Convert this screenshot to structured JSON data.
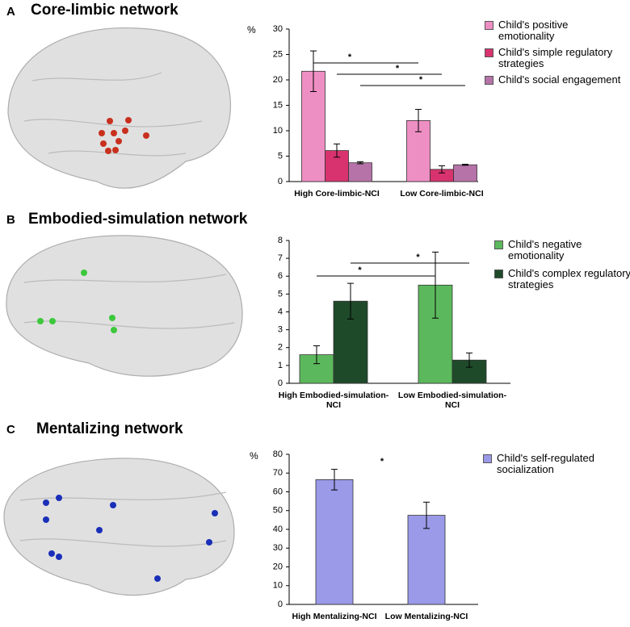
{
  "chart_data": [
    {
      "type": "bar",
      "panel": "A",
      "title": "Core-limbic network",
      "y_label": "%",
      "categories": [
        "High Core-limbic-NCI",
        "Low Core-limbic-NCI"
      ],
      "series": [
        {
          "name": "Child's positive emotionality",
          "color": "#ee8fc4",
          "values": [
            21.7,
            12
          ],
          "errors": [
            4,
            2.2
          ]
        },
        {
          "name": "Child's simple regulatory strategies",
          "color": "#d8336e",
          "values": [
            6.1,
            2.4
          ],
          "errors": [
            1.3,
            0.7
          ]
        },
        {
          "name": "Child's social engagement",
          "color": "#b673a8",
          "values": [
            3.7,
            3.3
          ],
          "errors": [
            0.2,
            0.1
          ]
        }
      ],
      "ylim": [
        0,
        30
      ],
      "yticks": [
        0,
        5,
        10,
        15,
        20,
        25,
        30
      ],
      "annotations": [
        "*",
        "*",
        "*"
      ]
    },
    {
      "type": "bar",
      "panel": "B",
      "title": "Embodied-simulation network",
      "categories": [
        "High Embodied-simulation-NCI",
        "Low Embodied-simulation-NCI"
      ],
      "series": [
        {
          "name": "Child's negative emotionality",
          "color": "#5cb85c",
          "values": [
            1.6,
            5.5
          ],
          "errors": [
            0.5,
            1.85
          ]
        },
        {
          "name": "Child's complex regulatory strategies",
          "color": "#1f4a2a",
          "values": [
            4.6,
            1.3
          ],
          "errors": [
            1.0,
            0.4
          ]
        }
      ],
      "ylim": [
        0,
        8
      ],
      "yticks": [
        0,
        1,
        2,
        3,
        4,
        5,
        6,
        7,
        8
      ],
      "annotations": [
        "*",
        "*"
      ]
    },
    {
      "type": "bar",
      "panel": "C",
      "title": "Mentalizing network",
      "y_label": "%",
      "categories": [
        "High Mentalizing-NCI",
        "Low Mentalizing-NCI"
      ],
      "series": [
        {
          "name": "Child's self-regulated socialization",
          "color": "#9a9ae8",
          "values": [
            66.5,
            47.5
          ],
          "errors": [
            5.5,
            7
          ]
        }
      ],
      "ylim": [
        0,
        80
      ],
      "yticks": [
        0,
        10,
        20,
        30,
        40,
        50,
        60,
        70,
        80
      ],
      "annotations": [
        "*"
      ]
    }
  ]
}
